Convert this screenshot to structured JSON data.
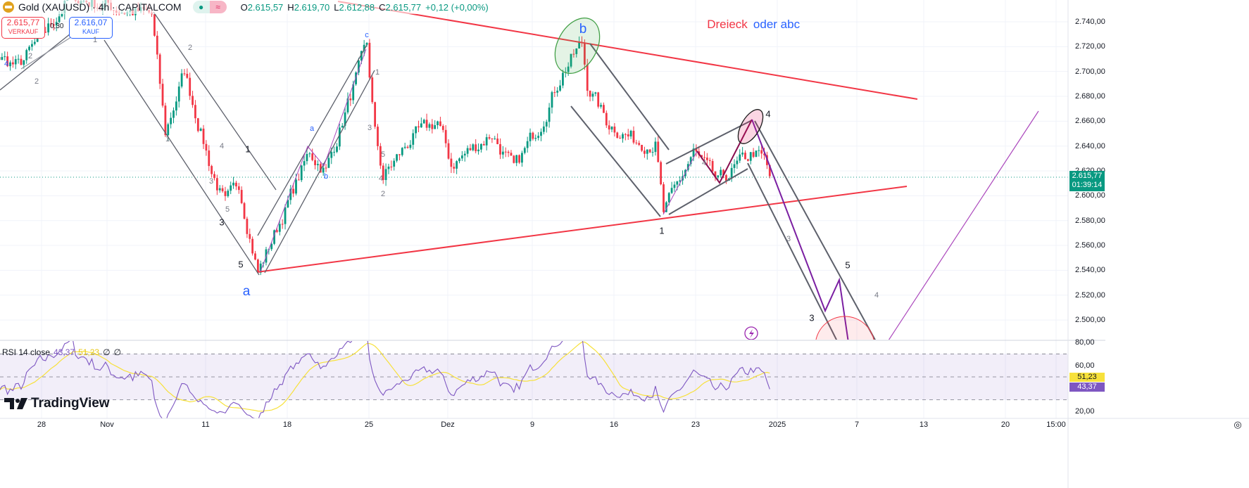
{
  "header": {
    "title": "Gold (XAUUSD) · 4h · CAPITALCOM",
    "market_open_icon": "green-dot",
    "indicator_icon": "≈",
    "ohlc": {
      "o_label": "O",
      "o": "2.615,57",
      "h_label": "H",
      "h": "2.619,70",
      "l_label": "L",
      "l": "2.612,88",
      "c_label": "C",
      "c": "2.615,77",
      "change": "+0,12 (+0,00%)"
    }
  },
  "trade": {
    "sell_price": "2.615,77",
    "sell_label": "VERKAUF",
    "buy_price": "2.616,07",
    "buy_label": "KAUF",
    "spread": "0,30"
  },
  "price_axis": {
    "ticks": [
      "2.740,00",
      "2.720,00",
      "2.700,00",
      "2.680,00",
      "2.660,00",
      "2.640,00",
      "2.620,00",
      "2.600,00",
      "2.580,00",
      "2.560,00",
      "2.540,00",
      "2.520,00",
      "2.500,00"
    ],
    "last_price": "2.615,77",
    "countdown": "01:39:14"
  },
  "rsi": {
    "legend": "RSI 14 close",
    "value": "43,37",
    "ma_value": "51,23",
    "empty1": "∅",
    "empty2": "∅",
    "ticks": [
      "80,00",
      "60,00",
      "20,00"
    ]
  },
  "time_axis": [
    "28",
    "Nov",
    "11",
    "18",
    "25",
    "Dez",
    "9",
    "16",
    "23",
    "2025",
    "7",
    "13",
    "20",
    "15:00"
  ],
  "annotations": {
    "title_red": "Dreieck",
    "title_blue": "oder abc",
    "wave_a": "a",
    "wave_b": "b",
    "wave_c": "c",
    "sub_a": "a",
    "sub_b": "b",
    "w4_blue": "4",
    "labels": [
      "1",
      "2",
      "1",
      "2",
      "3",
      "4",
      "5",
      "1",
      "3",
      "5",
      "4",
      "3",
      "5",
      "4",
      "2",
      "1",
      "4",
      "3",
      "5",
      "1",
      "2",
      "3",
      "4"
    ]
  },
  "logo": "TradingView",
  "colors": {
    "up": "#089981",
    "down": "#f23645",
    "rsi": "#7e57c2",
    "rsi_ma": "#f7e13b",
    "trend": "#f23645",
    "forecast": "#9c27b0"
  },
  "chart_data": {
    "type": "candlestick",
    "symbol": "XAUUSD",
    "timeframe": "4h",
    "ylim": [
      2490,
      2755
    ],
    "price_path": [
      [
        "2024-10-21 00:00",
        2725
      ],
      [
        "2024-10-24 12:00",
        2704
      ],
      [
        "2024-10-28 08:00",
        2735
      ],
      [
        "2024-10-29 16:00",
        2760
      ],
      [
        "2024-11-01 20:00",
        2750
      ],
      [
        "2024-11-05 16:00",
        2745
      ],
      [
        "2024-11-06 12:00",
        2650
      ],
      [
        "2024-11-07 16:00",
        2700
      ],
      [
        "2024-11-11 08:00",
        2620
      ],
      [
        "2024-11-12 04:00",
        2592
      ],
      [
        "2024-11-13 00:00",
        2610
      ],
      [
        "2024-11-14 04:00",
        2538
      ],
      [
        "2024-11-19 08:00",
        2635
      ],
      [
        "2024-11-20 08:00",
        2620
      ],
      [
        "2024-11-22 20:00",
        2720
      ],
      [
        "2024-11-25 08:00",
        2650
      ],
      [
        "2024-11-25 20:00",
        2615
      ],
      [
        "2024-11-27 12:00",
        2645
      ],
      [
        "2024-11-29 04:00",
        2660
      ],
      [
        "2024-12-02 00:00",
        2625
      ],
      [
        "2024-12-04 12:00",
        2650
      ],
      [
        "2024-12-05 20:00",
        2620
      ],
      [
        "2024-12-09 12:00",
        2660
      ],
      [
        "2024-12-10 20:00",
        2700
      ],
      [
        "2024-12-12 00:00",
        2722
      ],
      [
        "2024-12-12 08:00",
        2690
      ],
      [
        "2024-12-13 12:00",
        2660
      ],
      [
        "2024-12-17 04:00",
        2645
      ],
      [
        "2024-12-18 12:00",
        2642
      ],
      [
        "2024-12-19 00:00",
        2585
      ],
      [
        "2024-12-20 20:00",
        2635
      ],
      [
        "2024-12-24 08:00",
        2610
      ],
      [
        "2024-12-26 12:00",
        2635
      ],
      [
        "2024-12-27 04:00",
        2628
      ],
      [
        "2024-12-27 12:00",
        2615.77
      ]
    ],
    "rsi_period": 14,
    "rsi_last": 43.37,
    "rsi_ma_last": 51.23,
    "rsi_bands": [
      70,
      50,
      30
    ],
    "rsi_ylim": [
      20,
      80
    ]
  }
}
